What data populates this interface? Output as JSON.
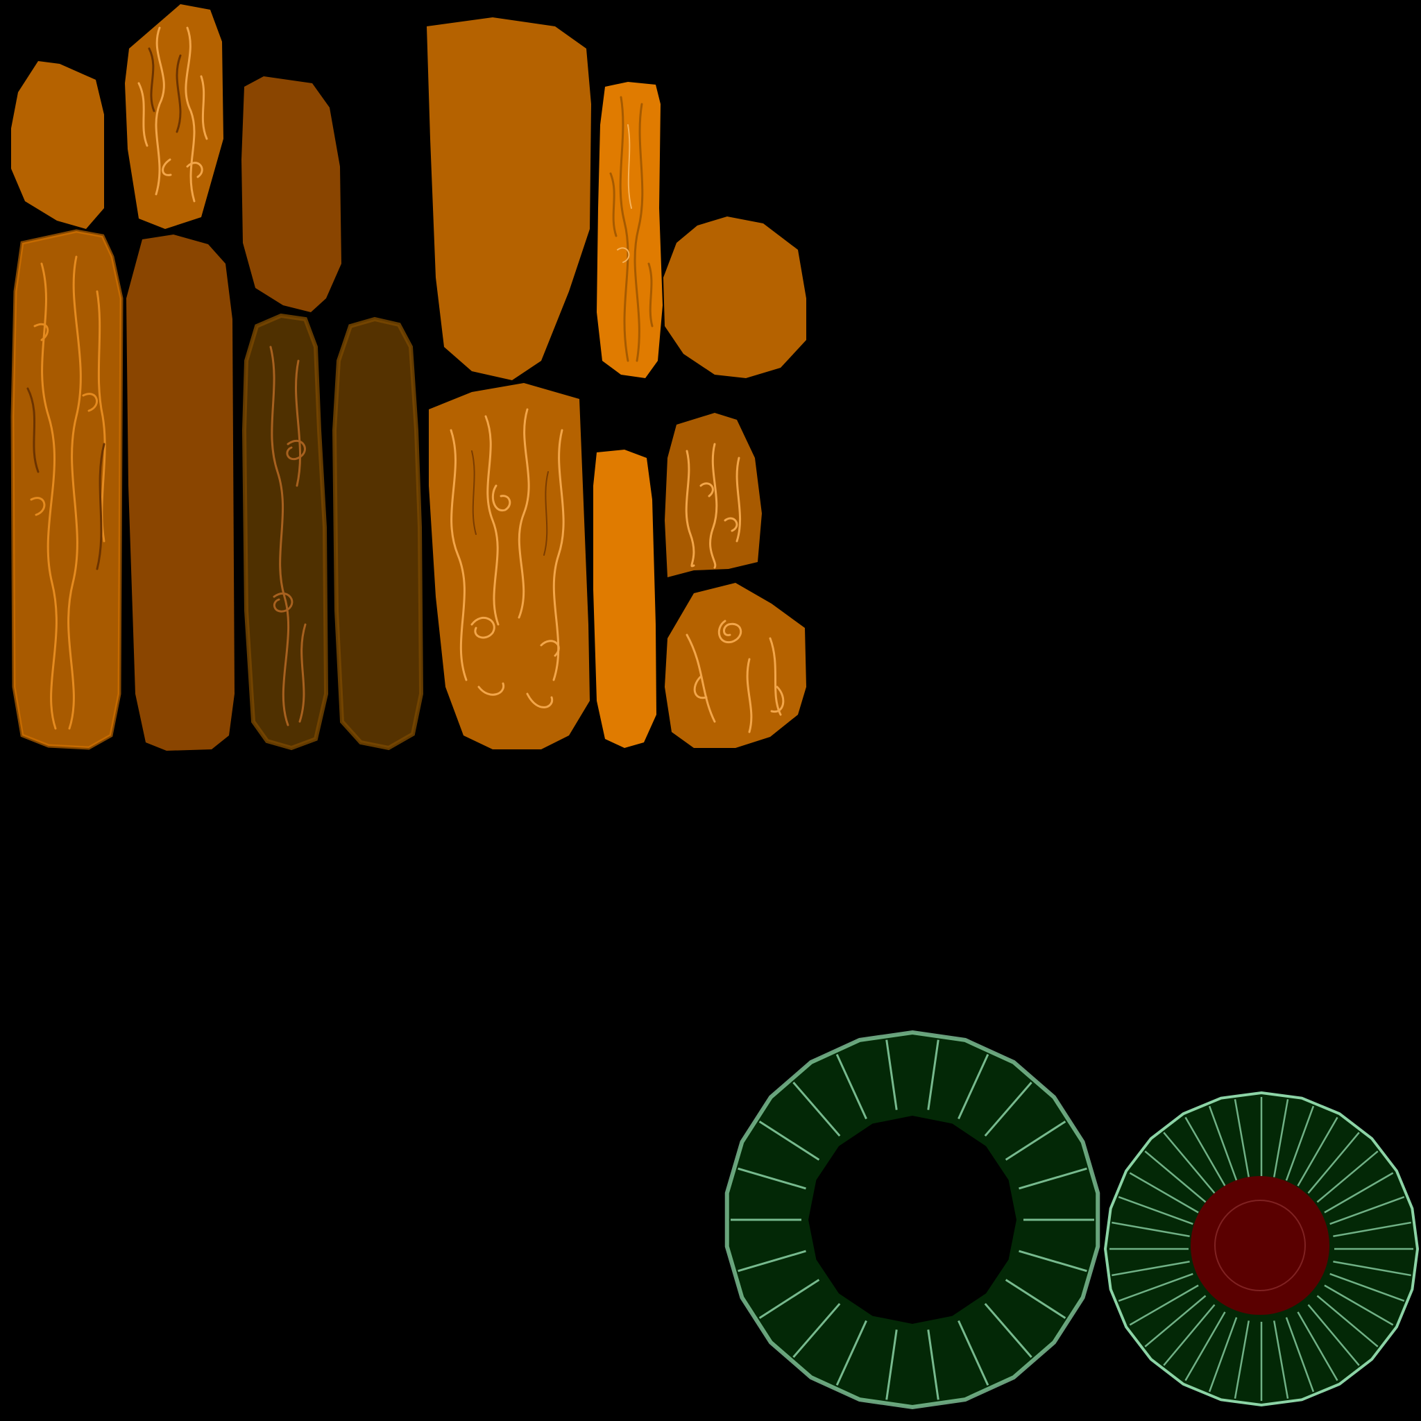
{
  "canvas": {
    "background": "#000000"
  },
  "palette": {
    "amber": "#b56200",
    "amber_light": "#d97500",
    "orange": "#e07b00",
    "brown": "#8a4500",
    "brown_mid": "#a85a00",
    "dark_brown": "#4f3000",
    "darkest_brown": "#553200",
    "grain_light": "#f3a64a",
    "grain_dark": "#6b3300",
    "bark_green": "#032806",
    "bark_green_highlight": "#8cd4a6",
    "core_red": "#5a0000"
  },
  "pieces": [
    {
      "id": "wood-plank-a",
      "kind": "plain",
      "color": "amber"
    },
    {
      "id": "wood-plank-b",
      "kind": "carved",
      "color": "amber"
    },
    {
      "id": "wood-plank-c",
      "kind": "plain",
      "color": "brown"
    },
    {
      "id": "wood-plank-d",
      "kind": "carved",
      "color": "brown_mid"
    },
    {
      "id": "wood-plank-e",
      "kind": "plain",
      "color": "brown"
    },
    {
      "id": "wood-plank-f",
      "kind": "carved",
      "color": "dark_brown"
    },
    {
      "id": "wood-plank-g",
      "kind": "plain",
      "color": "darkest_brown"
    },
    {
      "id": "wood-slab-h",
      "kind": "plain",
      "color": "amber"
    },
    {
      "id": "wood-strip-i",
      "kind": "carved",
      "color": "orange"
    },
    {
      "id": "wood-octagon-j",
      "kind": "plain",
      "color": "amber"
    },
    {
      "id": "wood-slab-k",
      "kind": "carved",
      "color": "amber"
    },
    {
      "id": "wood-strip-l",
      "kind": "plain",
      "color": "orange"
    },
    {
      "id": "wood-tile-m",
      "kind": "carved",
      "color": "brown_mid"
    },
    {
      "id": "wood-octagon-n",
      "kind": "carved",
      "color": "amber"
    },
    {
      "id": "bark-ring",
      "kind": "ring",
      "color": "bark_green"
    },
    {
      "id": "bark-disc",
      "kind": "disc",
      "color": "bark_green",
      "core": "core_red"
    }
  ]
}
